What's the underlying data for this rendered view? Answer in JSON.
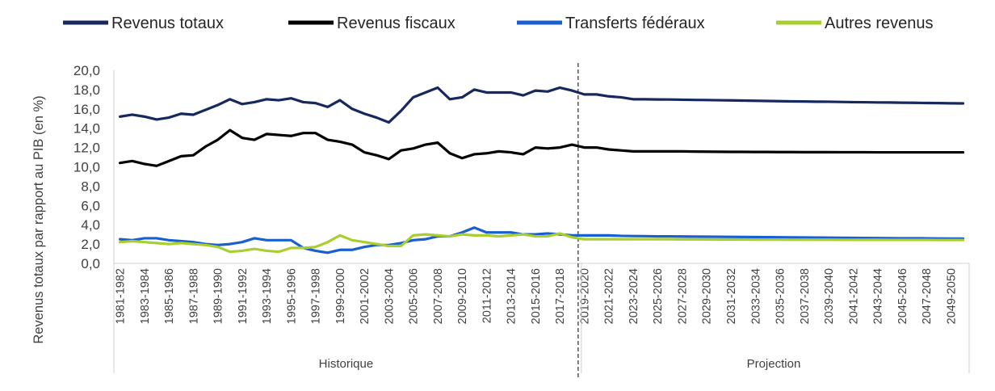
{
  "chart_data": {
    "type": "line",
    "ylabel": "Revenus totaux par rapport au PIB (en %)",
    "ylim": [
      0,
      20
    ],
    "y_ticks": [
      "0,0",
      "2,0",
      "4,0",
      "6,0",
      "8,0",
      "10,0",
      "12,0",
      "14,0",
      "16,0",
      "18,0",
      "20,0"
    ],
    "legend_position": "top",
    "groups": [
      {
        "label": "Historique"
      },
      {
        "label": "Projection"
      }
    ],
    "x": [
      "1981-1982",
      "1982-1983",
      "1983-1984",
      "1984-1985",
      "1985-1986",
      "1986-1987",
      "1987-1988",
      "1988-1989",
      "1989-1990",
      "1990-1991",
      "1991-1992",
      "1992-1993",
      "1993-1994",
      "1994-1995",
      "1995-1996",
      "1996-1997",
      "1997-1998",
      "1998-1999",
      "1999-2000",
      "2000-2001",
      "2001-2002",
      "2002-2003",
      "2003-2004",
      "2004-2005",
      "2005-2006",
      "2006-2007",
      "2007-2008",
      "2008-2009",
      "2009-2010",
      "2010-2011",
      "2011-2012",
      "2012-2013",
      "2013-2014",
      "2014-2015",
      "2015-2016",
      "2016-2017",
      "2017-2018",
      "2018-2019",
      "2019-2020",
      "2020-2021",
      "2021-2022",
      "2022-2023",
      "2023-2024",
      "2024-2025",
      "2025-2026",
      "2026-2027",
      "2027-2028",
      "2028-2029",
      "2029-2030",
      "2030-2031",
      "2031-2032",
      "2032-2033",
      "2033-2034",
      "2034-2035",
      "2035-2036",
      "2036-2037",
      "2037-2038",
      "2038-2039",
      "2039-2040",
      "2040-2041",
      "2041-2042",
      "2042-2043",
      "2043-2044",
      "2044-2045",
      "2045-2046",
      "2046-2047",
      "2047-2048",
      "2048-2049",
      "2049-2050",
      "2050-2051"
    ],
    "x_tick_labels": [
      "1981-1982",
      "1983-1984",
      "1985-1986",
      "1987-1988",
      "1989-1990",
      "1991-1992",
      "1993-1994",
      "1995-1996",
      "1997-1998",
      "1999-2000",
      "2001-2002",
      "2003-2004",
      "2005-2006",
      "2007-2008",
      "2009-2010",
      "2011-2012",
      "2013-2014",
      "2015-2016",
      "2017-2018",
      "2019-2020",
      "2021-2022",
      "2023-2024",
      "2025-2026",
      "2027-2028",
      "2029-2030",
      "2031-2032",
      "2033-2034",
      "2035-2036",
      "2037-2038",
      "2039-2040",
      "2041-2042",
      "2043-2044",
      "2045-2046",
      "2047-2048",
      "2049-2050"
    ],
    "split_after": "2018-2019",
    "series": [
      {
        "name": "Revenus totaux",
        "color": "#16285e",
        "values": [
          15.2,
          15.4,
          15.2,
          14.9,
          15.1,
          15.5,
          15.4,
          15.9,
          16.4,
          17.0,
          16.5,
          16.7,
          17.0,
          16.9,
          17.1,
          16.7,
          16.6,
          16.2,
          16.9,
          16.0,
          15.5,
          15.1,
          14.6,
          15.8,
          17.2,
          17.7,
          18.2,
          17.0,
          17.2,
          18.0,
          17.7,
          17.7,
          17.7,
          17.4,
          17.9,
          17.8,
          18.2,
          17.9,
          17.5,
          17.5,
          17.3,
          17.2,
          17.0,
          17.0,
          16.98,
          16.97,
          16.95,
          16.93,
          16.92,
          16.9,
          16.88,
          16.86,
          16.84,
          16.82,
          16.8,
          16.78,
          16.77,
          16.75,
          16.74,
          16.72,
          16.7,
          16.69,
          16.67,
          16.66,
          16.64,
          16.63,
          16.61,
          16.6,
          16.58,
          16.57
        ]
      },
      {
        "name": "Revenus fiscaux",
        "color": "#000000",
        "values": [
          10.4,
          10.6,
          10.3,
          10.1,
          10.6,
          11.1,
          11.2,
          12.1,
          12.8,
          13.8,
          13.0,
          12.8,
          13.4,
          13.3,
          13.2,
          13.5,
          13.5,
          12.8,
          12.6,
          12.3,
          11.5,
          11.2,
          10.8,
          11.7,
          11.9,
          12.3,
          12.5,
          11.4,
          10.9,
          11.3,
          11.4,
          11.6,
          11.5,
          11.3,
          12.0,
          11.9,
          12.0,
          12.3,
          12.0,
          12.0,
          11.8,
          11.7,
          11.6,
          11.6,
          11.6,
          11.6,
          11.6,
          11.58,
          11.57,
          11.56,
          11.55,
          11.55,
          11.54,
          11.54,
          11.53,
          11.53,
          11.52,
          11.52,
          11.52,
          11.51,
          11.51,
          11.51,
          11.5,
          11.5,
          11.5,
          11.5,
          11.5,
          11.5,
          11.5,
          11.5
        ]
      },
      {
        "name": "Transferts fédéraux",
        "color": "#1a5fd0",
        "values": [
          2.5,
          2.4,
          2.6,
          2.6,
          2.4,
          2.3,
          2.2,
          2.0,
          1.9,
          2.0,
          2.2,
          2.6,
          2.4,
          2.4,
          2.4,
          1.6,
          1.3,
          1.1,
          1.4,
          1.4,
          1.7,
          1.9,
          1.9,
          2.1,
          2.4,
          2.5,
          2.8,
          2.8,
          3.2,
          3.7,
          3.2,
          3.2,
          3.2,
          3.0,
          3.0,
          3.1,
          3.0,
          2.9,
          2.9,
          2.9,
          2.9,
          2.85,
          2.83,
          2.82,
          2.8,
          2.8,
          2.78,
          2.77,
          2.76,
          2.75,
          2.74,
          2.73,
          2.72,
          2.71,
          2.7,
          2.69,
          2.68,
          2.67,
          2.66,
          2.65,
          2.64,
          2.63,
          2.62,
          2.61,
          2.6,
          2.6,
          2.59,
          2.58,
          2.57,
          2.56
        ]
      },
      {
        "name": "Autres revenus",
        "color": "#a8cf2f",
        "values": [
          2.2,
          2.3,
          2.2,
          2.1,
          2.0,
          2.1,
          2.0,
          1.9,
          1.7,
          1.2,
          1.3,
          1.5,
          1.3,
          1.2,
          1.6,
          1.6,
          1.7,
          2.2,
          2.9,
          2.4,
          2.2,
          2.0,
          1.8,
          1.8,
          2.9,
          3.0,
          2.9,
          2.8,
          3.0,
          2.9,
          2.9,
          2.8,
          2.9,
          3.0,
          2.8,
          2.8,
          3.1,
          2.7,
          2.5,
          2.5,
          2.5,
          2.5,
          2.5,
          2.5,
          2.5,
          2.5,
          2.48,
          2.48,
          2.48,
          2.47,
          2.47,
          2.47,
          2.46,
          2.46,
          2.46,
          2.45,
          2.45,
          2.45,
          2.45,
          2.44,
          2.44,
          2.44,
          2.44,
          2.43,
          2.43,
          2.43,
          2.43,
          2.42,
          2.42,
          2.42
        ]
      }
    ]
  }
}
